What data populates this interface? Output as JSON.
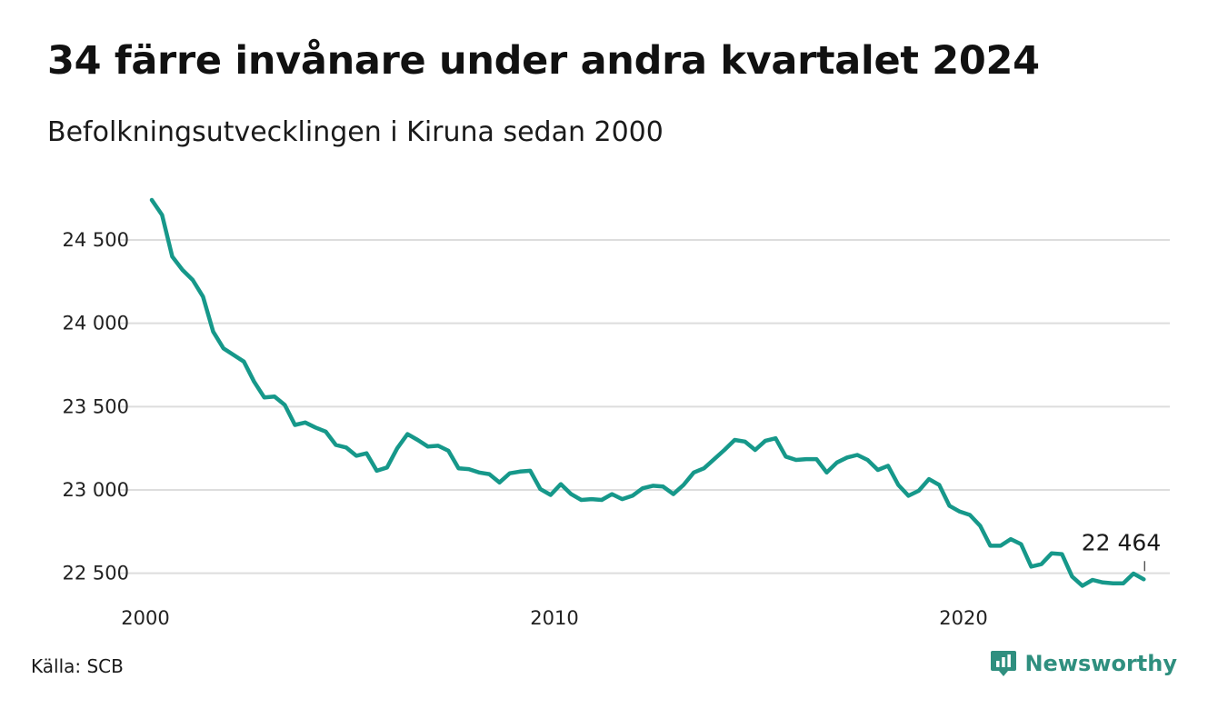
{
  "header": {
    "title": "34 färre invånare under andra kvartalet 2024",
    "subtitle": "Befolkningsutvecklingen i Kiruna sedan 2000"
  },
  "footer": {
    "source": "Källa: SCB",
    "brand": "Newsworthy",
    "brand_icon": "bar-chart-speech-bubble-icon"
  },
  "colors": {
    "line": "#16988a",
    "brand": "#2f8f7f",
    "grid": "#dddddd",
    "text": "#111111"
  },
  "chart_data": {
    "type": "line",
    "title": "34 färre invånare under andra kvartalet 2024",
    "subtitle": "Befolkningsutvecklingen i Kiruna sedan 2000",
    "xlabel": "",
    "ylabel": "",
    "x_start": 2000.0,
    "x_step": 0.25,
    "xlim": [
      2000,
      2025
    ],
    "ylim": [
      22400,
      24800
    ],
    "x_ticks": [
      2000,
      2010,
      2020
    ],
    "x_tick_labels": [
      "2000",
      "2010",
      "2020"
    ],
    "y_ticks": [
      22500,
      23000,
      23500,
      24000,
      24500
    ],
    "y_tick_labels": [
      "22 500",
      "23 000",
      "23 500",
      "24 000",
      "24 500"
    ],
    "grid": "horizontal",
    "end_label": "22 464",
    "series": [
      {
        "values": [
          24740,
          24650,
          24400,
          24320,
          24260,
          24160,
          23950,
          23850,
          23810,
          23770,
          23650,
          23555,
          23560,
          23510,
          23390,
          23405,
          23375,
          23350,
          23270,
          23255,
          23205,
          23220,
          23115,
          23135,
          23250,
          23335,
          23300,
          23260,
          23265,
          23235,
          23130,
          23125,
          23105,
          23095,
          23045,
          23100,
          23110,
          23115,
          23005,
          22970,
          23035,
          22975,
          22940,
          22945,
          22940,
          22975,
          22945,
          22965,
          23010,
          23025,
          23020,
          22975,
          23030,
          23105,
          23130,
          23185,
          23240,
          23300,
          23290,
          23240,
          23295,
          23310,
          23200,
          23180,
          23185,
          23185,
          23105,
          23165,
          23195,
          23210,
          23180,
          23120,
          23145,
          23030,
          22965,
          22995,
          23065,
          23030,
          22905,
          22870,
          22850,
          22785,
          22665,
          22665,
          22705,
          22675,
          22540,
          22555,
          22620,
          22615,
          22480,
          22425,
          22460,
          22445,
          22440,
          22440,
          22498,
          22464
        ]
      }
    ]
  }
}
